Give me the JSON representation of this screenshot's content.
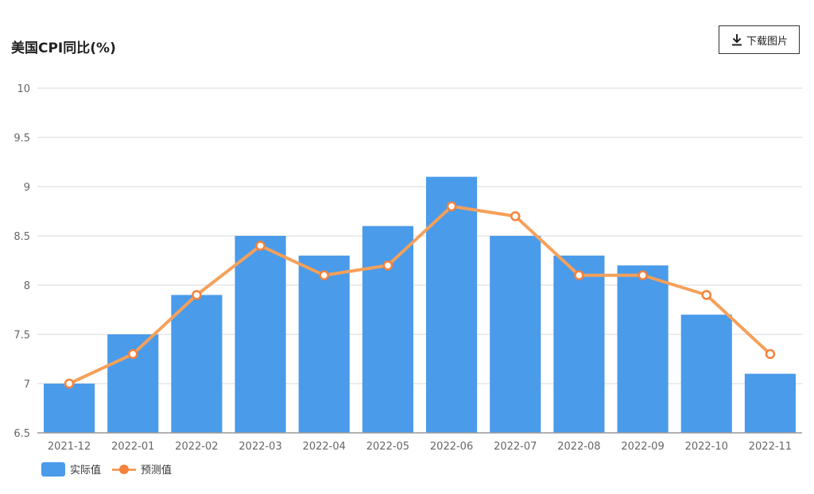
{
  "header": {
    "title": "美国CPI同比(%)",
    "download_label": "下载图片"
  },
  "colors": {
    "bar": "#4a9bea",
    "line": "#f5a05a",
    "marker": "#f5823c",
    "grid": "#d9d9d9",
    "axis": "#999999",
    "tick_text": "#666666"
  },
  "chart_data": {
    "type": "bar",
    "title": "美国CPI同比(%)",
    "categories": [
      "2021-12",
      "2022-01",
      "2022-02",
      "2022-03",
      "2022-04",
      "2022-05",
      "2022-06",
      "2022-07",
      "2022-08",
      "2022-09",
      "2022-10",
      "2022-11"
    ],
    "series": [
      {
        "name": "实际值",
        "type": "bar",
        "values": [
          7.0,
          7.5,
          7.9,
          8.5,
          8.3,
          8.6,
          9.1,
          8.5,
          8.3,
          8.2,
          7.7,
          7.1
        ]
      },
      {
        "name": "预测值",
        "type": "line",
        "values": [
          7.0,
          7.3,
          7.9,
          8.4,
          8.1,
          8.2,
          8.8,
          8.7,
          8.1,
          8.1,
          7.9,
          7.3
        ]
      }
    ],
    "ylim": [
      6.5,
      10
    ],
    "yticks": [
      "6.5",
      "7",
      "7.5",
      "8",
      "8.5",
      "9",
      "9.5",
      "10"
    ],
    "grid": true,
    "legend_position": "bottom-left"
  }
}
